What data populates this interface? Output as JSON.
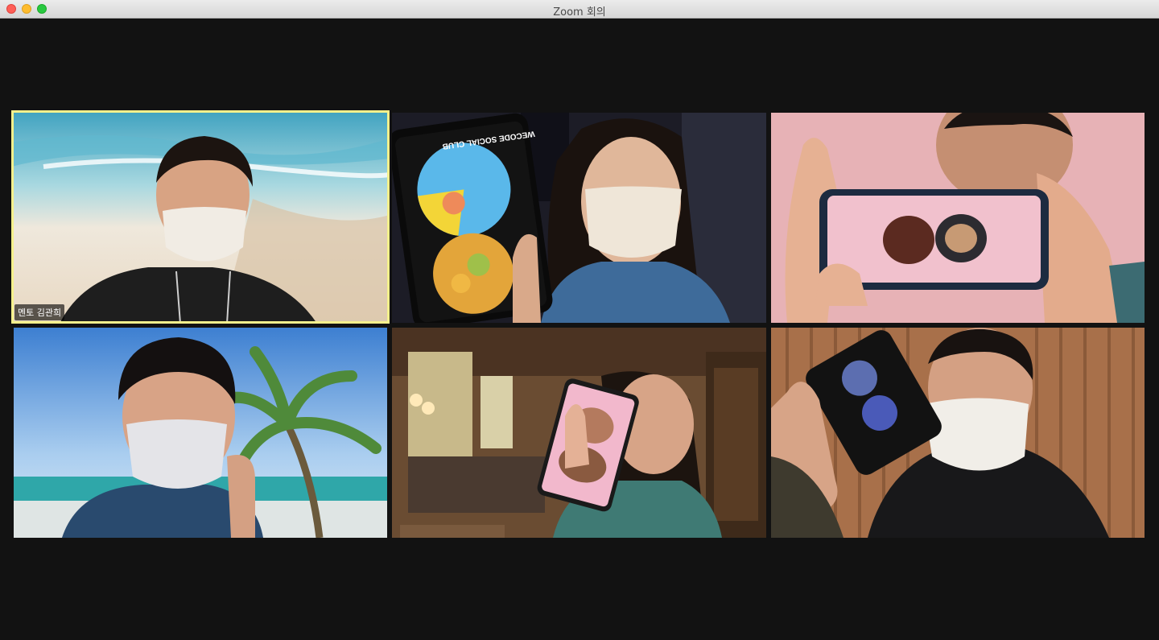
{
  "window": {
    "title": "Zoom 회의"
  },
  "participants": [
    {
      "name_tag": "멘토 김관희",
      "active_speaker": true
    },
    {
      "name_tag": "",
      "active_speaker": false
    },
    {
      "name_tag": "",
      "active_speaker": false
    },
    {
      "name_tag": "",
      "active_speaker": false
    },
    {
      "name_tag": "",
      "active_speaker": false
    },
    {
      "name_tag": "",
      "active_speaker": false
    }
  ],
  "screen_text": {
    "phone_heading": "WECODE SOCIAL CLUB"
  },
  "colors": {
    "active_speaker_border": "#f4f08c",
    "background": "#121212"
  }
}
